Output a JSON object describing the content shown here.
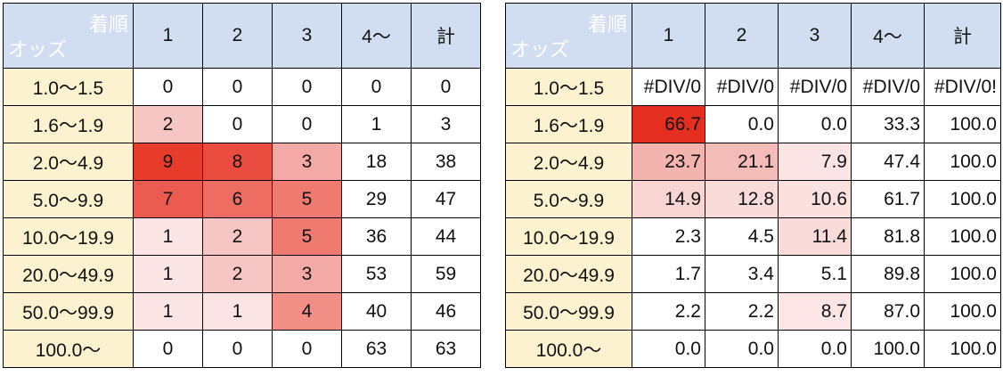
{
  "left_table": {
    "corner_top": "着順",
    "corner_bottom": "オッズ",
    "columns": [
      "1",
      "2",
      "3",
      "4〜",
      "計"
    ],
    "rows": [
      {
        "odds": "1.0〜1.5",
        "cells": [
          "0",
          "0",
          "0",
          "0",
          "0"
        ],
        "shades": [
          "",
          "",
          "",
          "",
          ""
        ]
      },
      {
        "odds": "1.6〜1.9",
        "cells": [
          "2",
          "0",
          "0",
          "1",
          "3"
        ],
        "shades": [
          "#f6c6c4",
          "",
          "",
          "",
          ""
        ]
      },
      {
        "odds": "2.0〜4.9",
        "cells": [
          "9",
          "8",
          "3",
          "18",
          "38"
        ],
        "shades": [
          "#e73c2c",
          "#ea4d3f",
          "#f3aaa6",
          "",
          ""
        ]
      },
      {
        "odds": "5.0〜9.9",
        "cells": [
          "7",
          "6",
          "5",
          "29",
          "47"
        ],
        "shades": [
          "#ec5b4f",
          "#ee6d62",
          "#ef7a70",
          "",
          ""
        ]
      },
      {
        "odds": "10.0〜19.9",
        "cells": [
          "1",
          "2",
          "5",
          "36",
          "44"
        ],
        "shades": [
          "#fbe5e4",
          "#f6c6c4",
          "#ef7a70",
          "",
          ""
        ]
      },
      {
        "odds": "20.0〜49.9",
        "cells": [
          "1",
          "2",
          "3",
          "53",
          "59"
        ],
        "shades": [
          "#fbe5e4",
          "#f6c6c4",
          "#f3aaa6",
          "",
          ""
        ]
      },
      {
        "odds": "50.0〜99.9",
        "cells": [
          "1",
          "1",
          "4",
          "40",
          "46"
        ],
        "shades": [
          "#fbe5e4",
          "#fbe5e4",
          "#f18f87",
          "",
          ""
        ]
      },
      {
        "odds": "100.0〜",
        "cells": [
          "0",
          "0",
          "0",
          "63",
          "63"
        ],
        "shades": [
          "",
          "",
          "",
          "",
          ""
        ]
      }
    ]
  },
  "right_table": {
    "corner_top": "着順",
    "corner_bottom": "オッズ",
    "columns": [
      "1",
      "2",
      "3",
      "4〜",
      "計"
    ],
    "rows": [
      {
        "odds": "1.0〜1.5",
        "cells": [
          "#DIV/0",
          "#DIV/0",
          "#DIV/0",
          "#DIV/0",
          "#DIV/0!"
        ],
        "shades": [
          "",
          "",
          "",
          "",
          ""
        ]
      },
      {
        "odds": "1.6〜1.9",
        "cells": [
          "66.7",
          "0.0",
          "0.0",
          "33.3",
          "100.0"
        ],
        "shades": [
          "#e42f20",
          "",
          "",
          "",
          ""
        ]
      },
      {
        "odds": "2.0〜4.9",
        "cells": [
          "23.7",
          "21.1",
          "7.9",
          "47.4",
          "100.0"
        ],
        "shades": [
          "#f3b3af",
          "#f4bcb8",
          "#fbe5e4",
          "",
          ""
        ]
      },
      {
        "odds": "5.0〜9.9",
        "cells": [
          "14.9",
          "12.8",
          "10.6",
          "61.7",
          "100.0"
        ],
        "shades": [
          "#f8d4d2",
          "#f9dcda",
          "#fae0df",
          "",
          ""
        ]
      },
      {
        "odds": "10.0〜19.9",
        "cells": [
          "2.3",
          "4.5",
          "11.4",
          "81.8",
          "100.0"
        ],
        "shades": [
          "",
          "",
          "#f9dcda",
          "",
          ""
        ]
      },
      {
        "odds": "20.0〜49.9",
        "cells": [
          "1.7",
          "3.4",
          "5.1",
          "89.8",
          "100.0"
        ],
        "shades": [
          "",
          "",
          "",
          "",
          ""
        ]
      },
      {
        "odds": "50.0〜99.9",
        "cells": [
          "2.2",
          "2.2",
          "8.7",
          "87.0",
          "100.0"
        ],
        "shades": [
          "",
          "",
          "#fbe6e5",
          "",
          ""
        ]
      },
      {
        "odds": "100.0〜",
        "cells": [
          "0.0",
          "0.0",
          "0.0",
          "100.0",
          "100.0"
        ],
        "shades": [
          "",
          "",
          "",
          "",
          ""
        ]
      }
    ]
  }
}
